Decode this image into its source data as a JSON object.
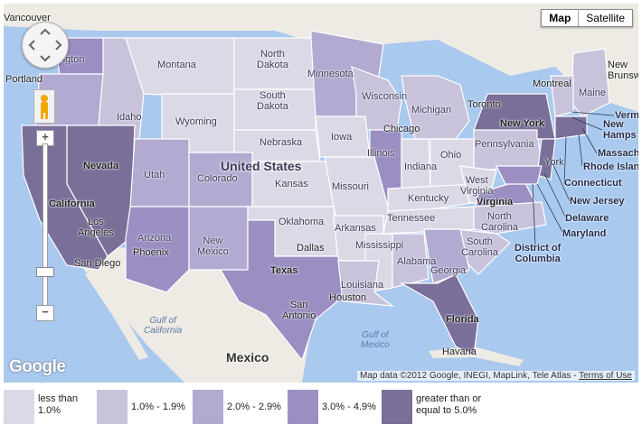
{
  "map": {
    "type_buttons": {
      "map": "Map",
      "satellite": "Satellite"
    },
    "zoom": {
      "in": "+",
      "out": "−"
    },
    "country_label": "United States",
    "mexico_label": "Mexico",
    "attribution_text": "Map data ©2012 Google, INEGI, MapLink, Tele Atlas - ",
    "terms_link": "Terms of Use",
    "google_logo": "Google",
    "water_labels": {
      "gulf_california": "Gulf of\nCalifornia",
      "gulf_mexico": "Gulf of\nMexico"
    },
    "state_labels": {
      "washington": "ngton",
      "montana": "Montana",
      "north_dakota": "North\nDakota",
      "minnesota": "Minnesota",
      "south_dakota": "South\nDakota",
      "wisconsin": "Wisconsin",
      "michigan": "Michigan",
      "idaho": "Idaho",
      "wyoming": "Wyoming",
      "nebraska": "Nebraska",
      "iowa": "Iowa",
      "illinois": "Illinois",
      "indiana": "Indiana",
      "ohio": "Ohio",
      "pennsylvania": "Pennsylvania",
      "new_york": "New York",
      "maine": "Maine",
      "nevada": "Nevada",
      "utah": "Utah",
      "colorado": "Colorado",
      "kansas": "Kansas",
      "missouri": "Missouri",
      "kentucky": "Kentucky",
      "west_virginia": "West\nVirginia",
      "virginia": "Virginia",
      "california": "California",
      "arizona": "Arizona",
      "new_mexico": "New\nMexico",
      "oklahoma": "Oklahoma",
      "arkansas": "Arkansas",
      "tennessee": "Tennessee",
      "north_carolina": "North\nCarolina",
      "south_carolina": "South\nCarolina",
      "mississippi": "Mississippi",
      "alabama": "Alabama",
      "georgia": "Georgia",
      "texas": "Texas",
      "louisiana": "Louisiana",
      "florida": "Florida"
    },
    "callouts": {
      "vermont": "Verm",
      "new_hampshire": "New\nHamps",
      "massachusetts": "Massach",
      "rhode_island": "Rhode Island",
      "connecticut": "Connecticut",
      "new_jersey": "New Jersey",
      "delaware": "Delaware",
      "maryland": "Maryland",
      "dc": "District of\nColumbia",
      "new_york_city": "York"
    },
    "cities": {
      "vancouver": "Vancouver",
      "portland": "Portland",
      "los_angeles": "Los\nAngeles",
      "san_diego": "San Diego",
      "phoenix": "Phoenix",
      "dallas": "Dallas",
      "houston": "Houston",
      "san_antonio": "San\nAntonio",
      "chicago": "Chicago",
      "toronto": "Toronto",
      "montreal": "Montreal",
      "havana": "Havana",
      "new_brunswick": "New\nBrunswi"
    }
  },
  "legend": [
    {
      "label": "less than\n1.0%",
      "color": "#dcd9e6"
    },
    {
      "label": "1.0% - 1.9%",
      "color": "#c8c3db"
    },
    {
      "label": "2.0% - 2.9%",
      "color": "#b2aad0"
    },
    {
      "label": "3.0% - 4.9%",
      "color": "#9b8ec3"
    },
    {
      "label": "greater than or\nequal to 5.0%",
      "color": "#7a6f99"
    }
  ],
  "colors": {
    "water": "#a9c9ef",
    "land": "#eeeae4",
    "less_1": "#dcd9e6",
    "c1_19": "#c8c3db",
    "c2_29": "#b2aad0",
    "c3_49": "#9b8ec3",
    "ge5": "#7a6f99"
  }
}
